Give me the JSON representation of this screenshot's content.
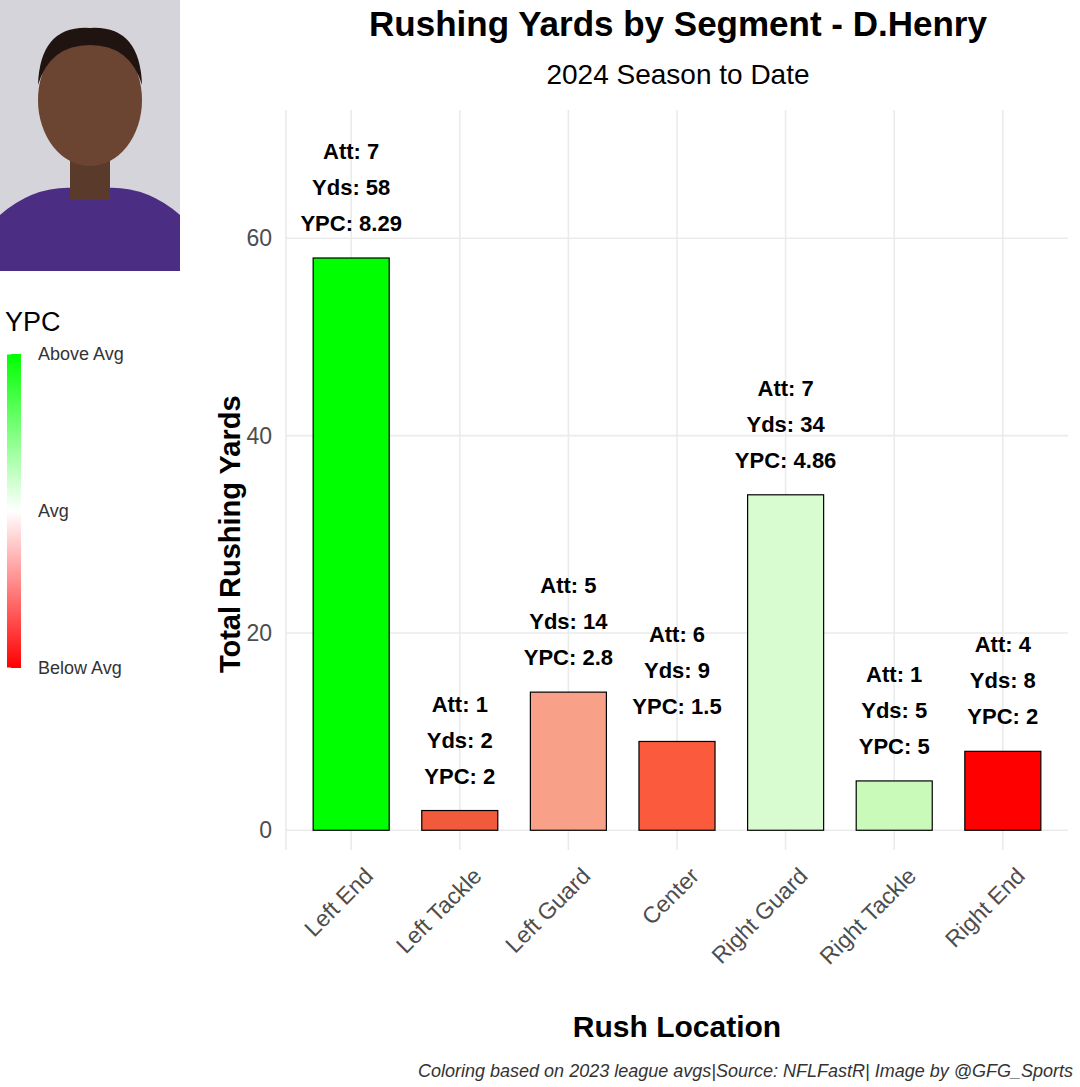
{
  "chart_data": {
    "type": "bar",
    "title": "Rushing Yards by Segment - D.Henry",
    "subtitle": "2024 Season to Date",
    "x_label": "Rush Location",
    "y_label": "Total Rushing Yards",
    "categories": [
      "Left End",
      "Left Tackle",
      "Left Guard",
      "Center",
      "Right Guard",
      "Right Tackle",
      "Right End"
    ],
    "values": [
      58,
      2,
      14,
      9,
      34,
      5,
      8
    ],
    "value_labels": [
      "Yds: 58",
      "Yds: 2",
      "Yds: 14",
      "Yds: 9",
      "Yds: 34",
      "Yds: 5",
      "Yds: 8"
    ],
    "att_labels": [
      "Att: 7",
      "Att: 1",
      "Att: 5",
      "Att: 6",
      "Att: 7",
      "Att: 1",
      "Att: 4"
    ],
    "ypc_labels": [
      "YPC: 8.29",
      "YPC: 2",
      "YPC: 2.8",
      "YPC: 1.5",
      "YPC: 4.86",
      "YPC: 5",
      "YPC: 2"
    ],
    "colors": [
      "#00ff00",
      "#f25a3c",
      "#f9a088",
      "#fb5a3c",
      "#d8fcd0",
      "#c9fab9",
      "#ff0000"
    ],
    "ylim": [
      -2,
      73
    ],
    "yticks": [
      0,
      20,
      40,
      60
    ],
    "grid": true,
    "data_labels": true,
    "legend": "left",
    "colorbar": {
      "title": "YPC",
      "labels": [
        "Above Avg",
        "Avg",
        "Below Avg"
      ]
    },
    "caption": "Coloring based on 2023 league avgs|Source: NFLFastR| Image by @GFG_Sports"
  }
}
